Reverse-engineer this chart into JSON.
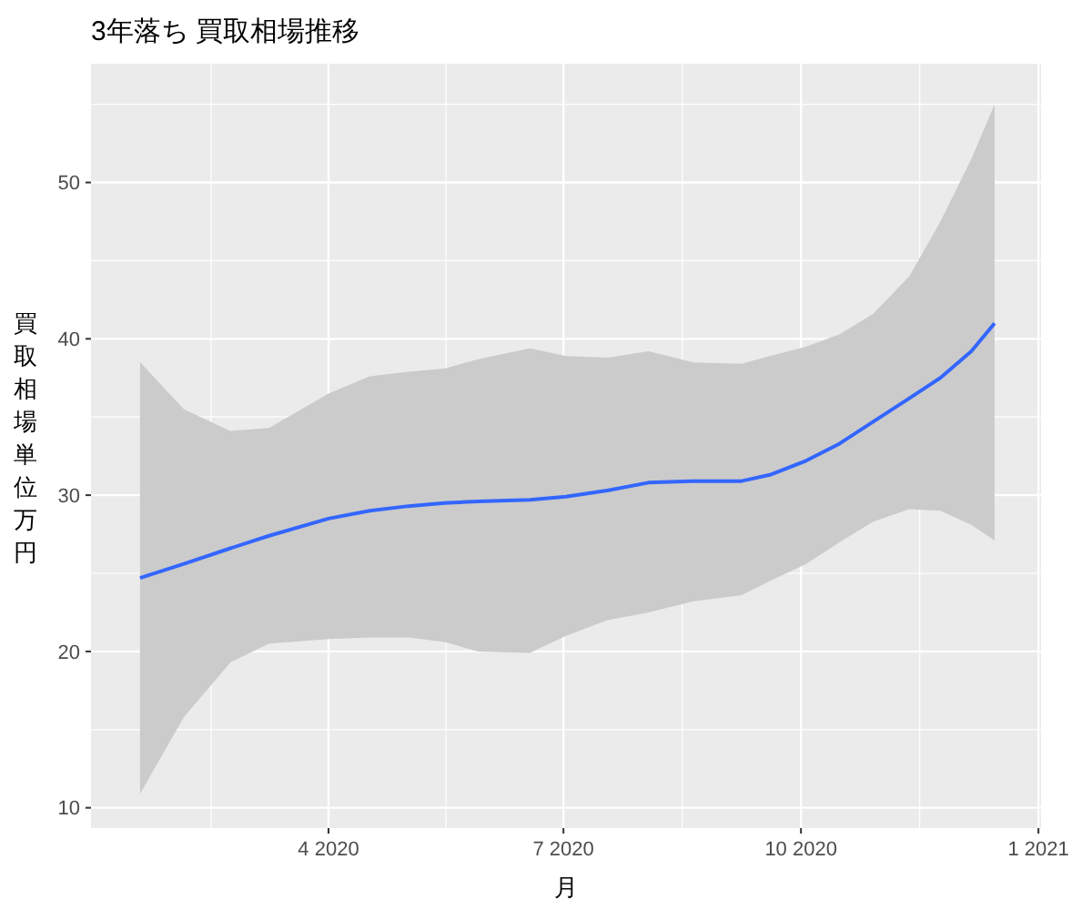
{
  "chart_data": {
    "type": "line",
    "title": "3年落ち 買取相場推移",
    "xlabel": "月",
    "ylabel": "買取相場単位万円",
    "x": [
      "2020-01-19",
      "2020-02-05",
      "2020-02-23",
      "2020-03-09",
      "2020-04-01",
      "2020-04-17",
      "2020-05-02",
      "2020-05-16",
      "2020-05-29",
      "2020-06-18",
      "2020-07-02",
      "2020-07-18",
      "2020-08-03",
      "2020-08-20",
      "2020-09-08",
      "2020-09-19",
      "2020-10-03",
      "2020-10-16",
      "2020-10-29",
      "2020-11-12",
      "2020-11-24",
      "2020-12-06",
      "2020-12-15"
    ],
    "series": [
      {
        "color": "#3366ff",
        "values": [
          24.7,
          25.6,
          26.6,
          27.4,
          28.5,
          29.0,
          29.3,
          29.5,
          29.6,
          29.7,
          29.9,
          30.3,
          30.8,
          30.9,
          30.9,
          31.3,
          32.2,
          33.3,
          34.7,
          36.2,
          37.5,
          39.2,
          41.0
        ],
        "upper": [
          38.5,
          35.5,
          34.1,
          34.3,
          36.5,
          37.6,
          37.9,
          38.1,
          38.7,
          39.4,
          38.9,
          38.8,
          39.2,
          38.5,
          38.4,
          38.9,
          39.5,
          40.3,
          41.6,
          44.0,
          47.5,
          51.5,
          55.0
        ],
        "lower": [
          10.9,
          15.8,
          19.3,
          20.5,
          20.8,
          20.9,
          20.9,
          20.6,
          20.0,
          19.9,
          21.0,
          22.0,
          22.5,
          23.2,
          23.6,
          24.5,
          25.6,
          27.0,
          28.3,
          29.1,
          29.0,
          28.1,
          27.1
        ]
      }
    ],
    "xlim": [
      "2019-12-31",
      "2021-01-02"
    ],
    "xticks": [
      {
        "value": "2020-04-01",
        "label": "4 2020"
      },
      {
        "value": "2020-07-01",
        "label": "7 2020"
      },
      {
        "value": "2020-10-01",
        "label": "10 2020"
      },
      {
        "value": "2021-01-01",
        "label": "1 2021"
      }
    ],
    "ylim": [
      8.7,
      57.6
    ],
    "yticks": [
      10,
      20,
      30,
      40,
      50
    ],
    "grid": true,
    "marker": "none",
    "line_style": "solid"
  }
}
